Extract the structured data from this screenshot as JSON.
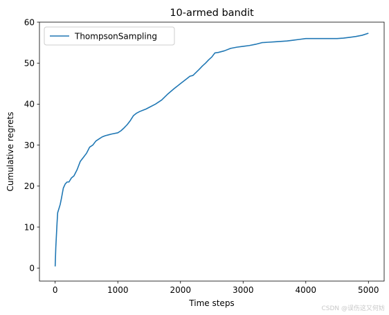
{
  "chart_data": {
    "type": "line",
    "title": "10-armed bandit",
    "xlabel": "Time steps",
    "ylabel": "Cumulative regrets",
    "xlim": [
      0,
      5000
    ],
    "ylim": [
      0,
      60
    ],
    "xticks": [
      0,
      1000,
      2000,
      3000,
      4000,
      5000
    ],
    "yticks": [
      0,
      10,
      20,
      30,
      40,
      50,
      60
    ],
    "grid": false,
    "legend_position": "top-left",
    "series": [
      {
        "name": "ThompsonSampling",
        "color": "#1f77b4",
        "x": [
          0,
          10,
          20,
          30,
          40,
          60,
          80,
          100,
          130,
          160,
          190,
          220,
          260,
          300,
          350,
          400,
          450,
          500,
          550,
          600,
          650,
          700,
          750,
          800,
          850,
          900,
          1000,
          1050,
          1100,
          1150,
          1200,
          1250,
          1300,
          1350,
          1400,
          1450,
          1500,
          1600,
          1700,
          1800,
          1900,
          2000,
          2100,
          2150,
          2200,
          2300,
          2350,
          2400,
          2450,
          2500,
          2550,
          2600,
          2700,
          2800,
          2900,
          3000,
          3100,
          3200,
          3300,
          3400,
          3500,
          3600,
          3700,
          3800,
          3900,
          4000,
          4100,
          4200,
          4300,
          4400,
          4500,
          4600,
          4700,
          4800,
          4900,
          5000
        ],
        "y": [
          0.4,
          5,
          8,
          11,
          13.5,
          14.5,
          15.5,
          17,
          19.5,
          20.5,
          21,
          21,
          22,
          22.5,
          24,
          26,
          27,
          28,
          29.5,
          30,
          31,
          31.5,
          32,
          32.3,
          32.5,
          32.7,
          33,
          33.5,
          34.2,
          35,
          36,
          37.2,
          37.8,
          38.2,
          38.5,
          38.8,
          39.2,
          40,
          41,
          42.5,
          43.8,
          45,
          46.2,
          46.8,
          47,
          48.5,
          49.3,
          50,
          50.8,
          51.5,
          52.5,
          52.6,
          53,
          53.6,
          53.9,
          54.1,
          54.3,
          54.6,
          55,
          55.1,
          55.2,
          55.3,
          55.4,
          55.6,
          55.8,
          56,
          56,
          56,
          56,
          56,
          56,
          56.1,
          56.3,
          56.5,
          56.8,
          57.3
        ]
      }
    ]
  },
  "watermark": "CSDN @误伤这又何妨"
}
